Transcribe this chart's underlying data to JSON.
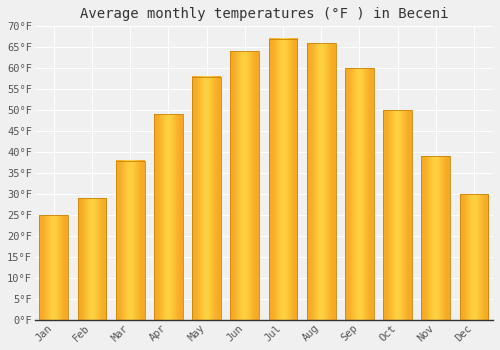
{
  "title": "Average monthly temperatures (°F ) in Beceni",
  "months": [
    "Jan",
    "Feb",
    "Mar",
    "Apr",
    "May",
    "Jun",
    "Jul",
    "Aug",
    "Sep",
    "Oct",
    "Nov",
    "Dec"
  ],
  "values": [
    25,
    29,
    38,
    49,
    58,
    64,
    67,
    66,
    60,
    50,
    39,
    30
  ],
  "bar_color_left": "#F5A623",
  "bar_color_center": "#FFD040",
  "bar_color_right": "#F5A623",
  "bar_edge_color": "#C8860A",
  "ylim": [
    0,
    70
  ],
  "yticks": [
    0,
    5,
    10,
    15,
    20,
    25,
    30,
    35,
    40,
    45,
    50,
    55,
    60,
    65,
    70
  ],
  "ytick_labels": [
    "0°F",
    "5°F",
    "10°F",
    "15°F",
    "20°F",
    "25°F",
    "30°F",
    "35°F",
    "40°F",
    "45°F",
    "50°F",
    "55°F",
    "60°F",
    "65°F",
    "70°F"
  ],
  "title_fontsize": 10,
  "tick_fontsize": 7.5,
  "background_color": "#f0f0f0",
  "plot_bg_color": "#f0f0f0",
  "grid_color": "#ffffff",
  "bar_width": 0.75
}
